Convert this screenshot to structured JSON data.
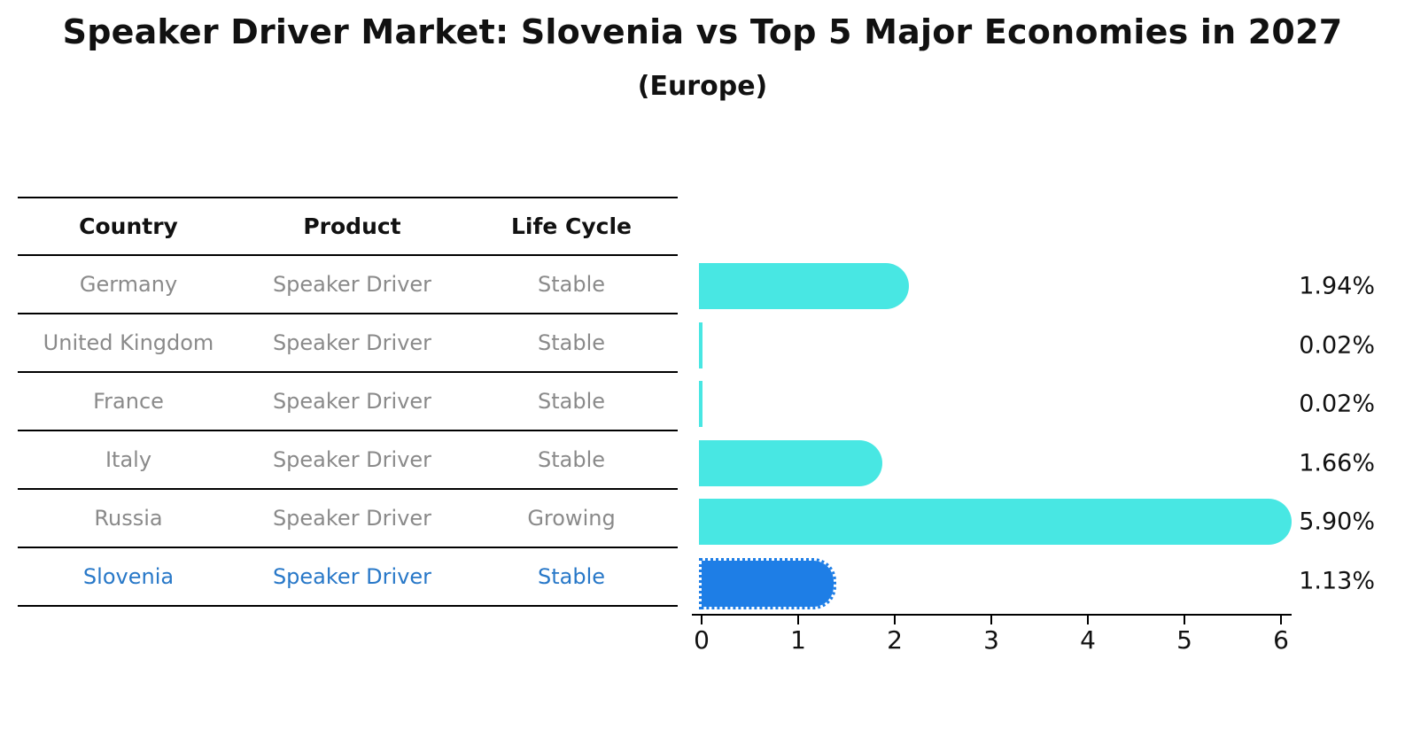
{
  "title": "Speaker Driver Market: Slovenia vs Top 5 Major Economies in 2027",
  "subtitle": "(Europe)",
  "table": {
    "headers": [
      "Country",
      "Product",
      "Life Cycle"
    ],
    "rows": [
      {
        "country": "Germany",
        "product": "Speaker Driver",
        "life_cycle": "Stable",
        "highlight": false
      },
      {
        "country": "United Kingdom",
        "product": "Speaker Driver",
        "life_cycle": "Stable",
        "highlight": false
      },
      {
        "country": "France",
        "product": "Speaker Driver",
        "life_cycle": "Stable",
        "highlight": false
      },
      {
        "country": "Italy",
        "product": "Speaker Driver",
        "life_cycle": "Stable",
        "highlight": false
      },
      {
        "country": "Russia",
        "product": "Speaker Driver",
        "life_cycle": "Growing",
        "highlight": false
      },
      {
        "country": "Slovenia",
        "product": "Speaker Driver",
        "life_cycle": "Stable",
        "highlight": true
      }
    ]
  },
  "chart_data": {
    "type": "bar",
    "orientation": "horizontal",
    "categories": [
      "Germany",
      "United Kingdom",
      "France",
      "Italy",
      "Russia",
      "Slovenia"
    ],
    "values": [
      1.94,
      0.02,
      0.02,
      1.66,
      5.9,
      1.13
    ],
    "value_labels": [
      "1.94%",
      "0.02%",
      "0.02%",
      "1.66%",
      "5.90%",
      "1.13%"
    ],
    "highlight_index": 5,
    "xlabel": "",
    "ylabel": "",
    "xlim": [
      0,
      6.15
    ],
    "x_ticks": [
      0,
      1,
      2,
      3,
      4,
      5,
      6
    ],
    "grid": false,
    "legend": "none",
    "bar_color": "#48e7e3",
    "highlight_bar_color": "#1e7ee6",
    "highlight_text_color": "#2878c8",
    "row_text_color": "#8a8a8a",
    "axis_color": "#000000"
  }
}
